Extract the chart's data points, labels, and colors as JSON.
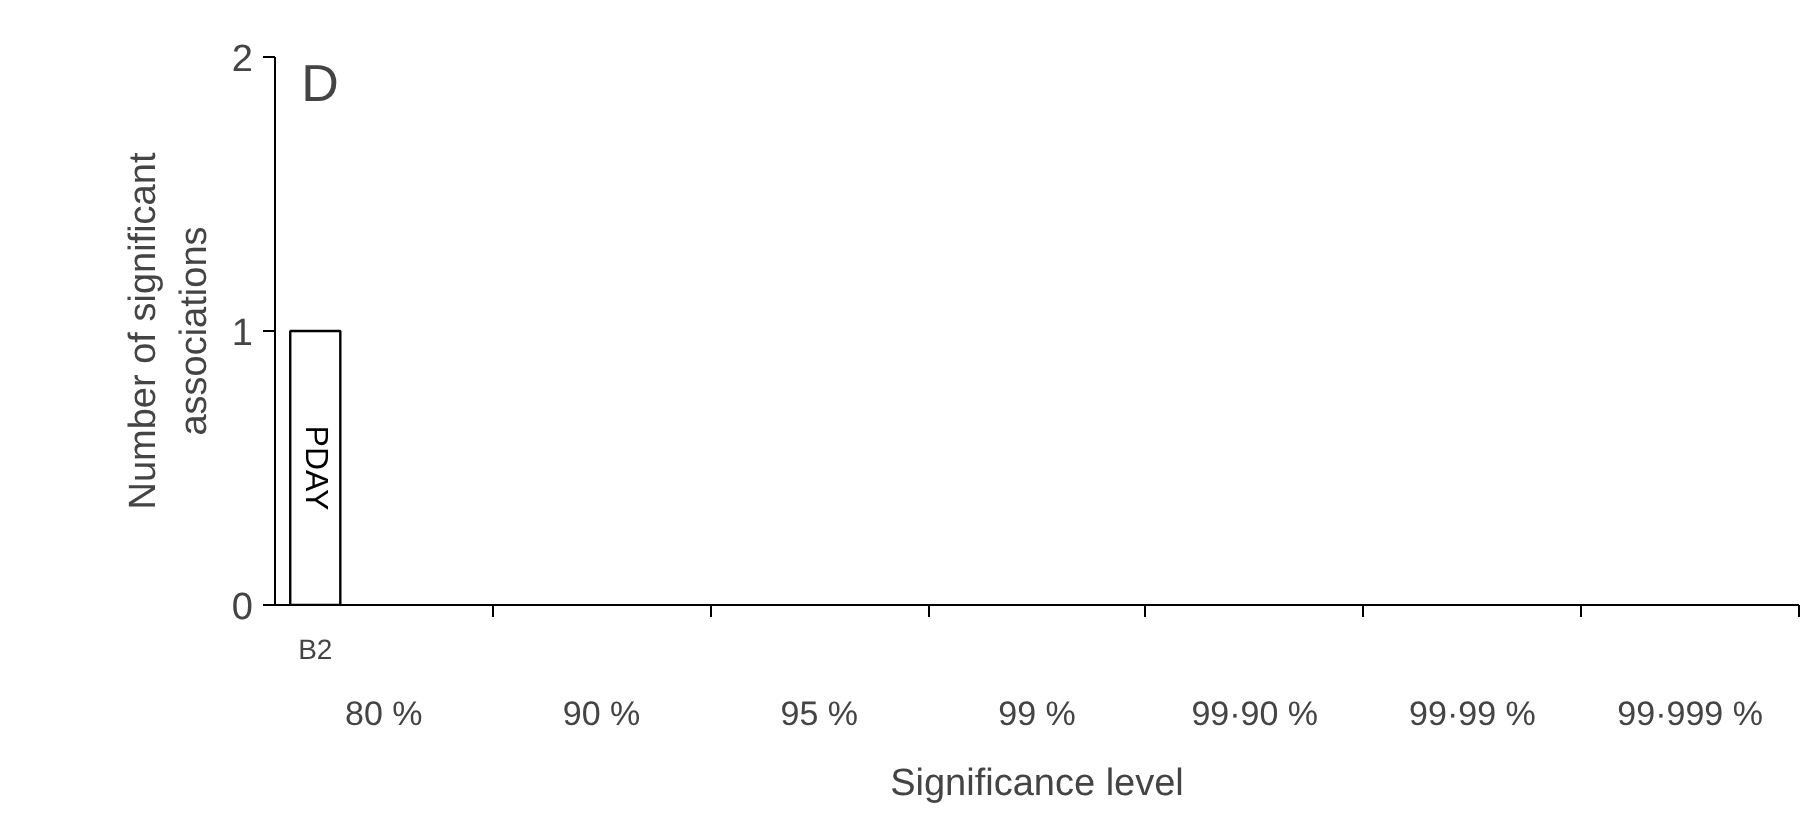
{
  "chart_data": {
    "type": "bar",
    "xlabel": "Significance level",
    "ylabel": "Number of significant\nassociations",
    "categories": [
      "80 %",
      "90 %",
      "95 %",
      "99 %",
      "99·90 %",
      "99·99 %",
      "99·999 %"
    ],
    "series": [
      {
        "name": "B2",
        "color": "#ffffff",
        "values": [
          1,
          null,
          null,
          null,
          null,
          null,
          null
        ]
      }
    ],
    "ylim": [
      0,
      2
    ],
    "yticks": [
      0,
      1,
      2
    ],
    "grid": false,
    "annotations": [
      "D",
      "PDAY"
    ]
  }
}
